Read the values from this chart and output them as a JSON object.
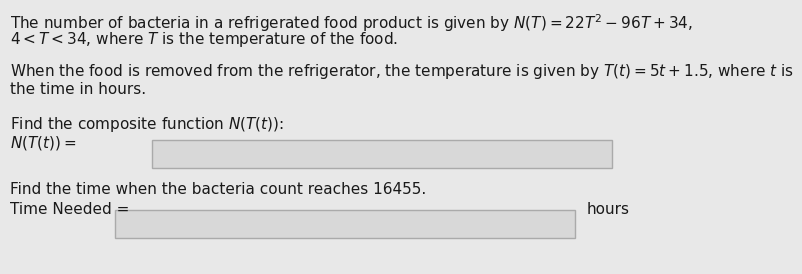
{
  "bg_color": "#e8e8e8",
  "text_color": "#1a1a1a",
  "box_face": "#d8d8d8",
  "box_edge": "#aaaaaa",
  "line1": "The number of bacteria in a refrigerated food product is given by $N(T) = 22T^2 - 96T + 34$,",
  "line2": "$4 < T < 34$, where $T$ is the temperature of the food.",
  "line3": "When the food is removed from the refrigerator, the temperature is given by $T(t) = 5t + 1.5$, where $t$ is",
  "line4": "the time in hours.",
  "line5": "Find the composite function $N(T(t))$:",
  "line6": "$N(T(t)) =$",
  "line7": "Find the time when the bacteria count reaches 16455.",
  "line8": "Time Needed =",
  "line9": "hours",
  "font_size": 11.0
}
